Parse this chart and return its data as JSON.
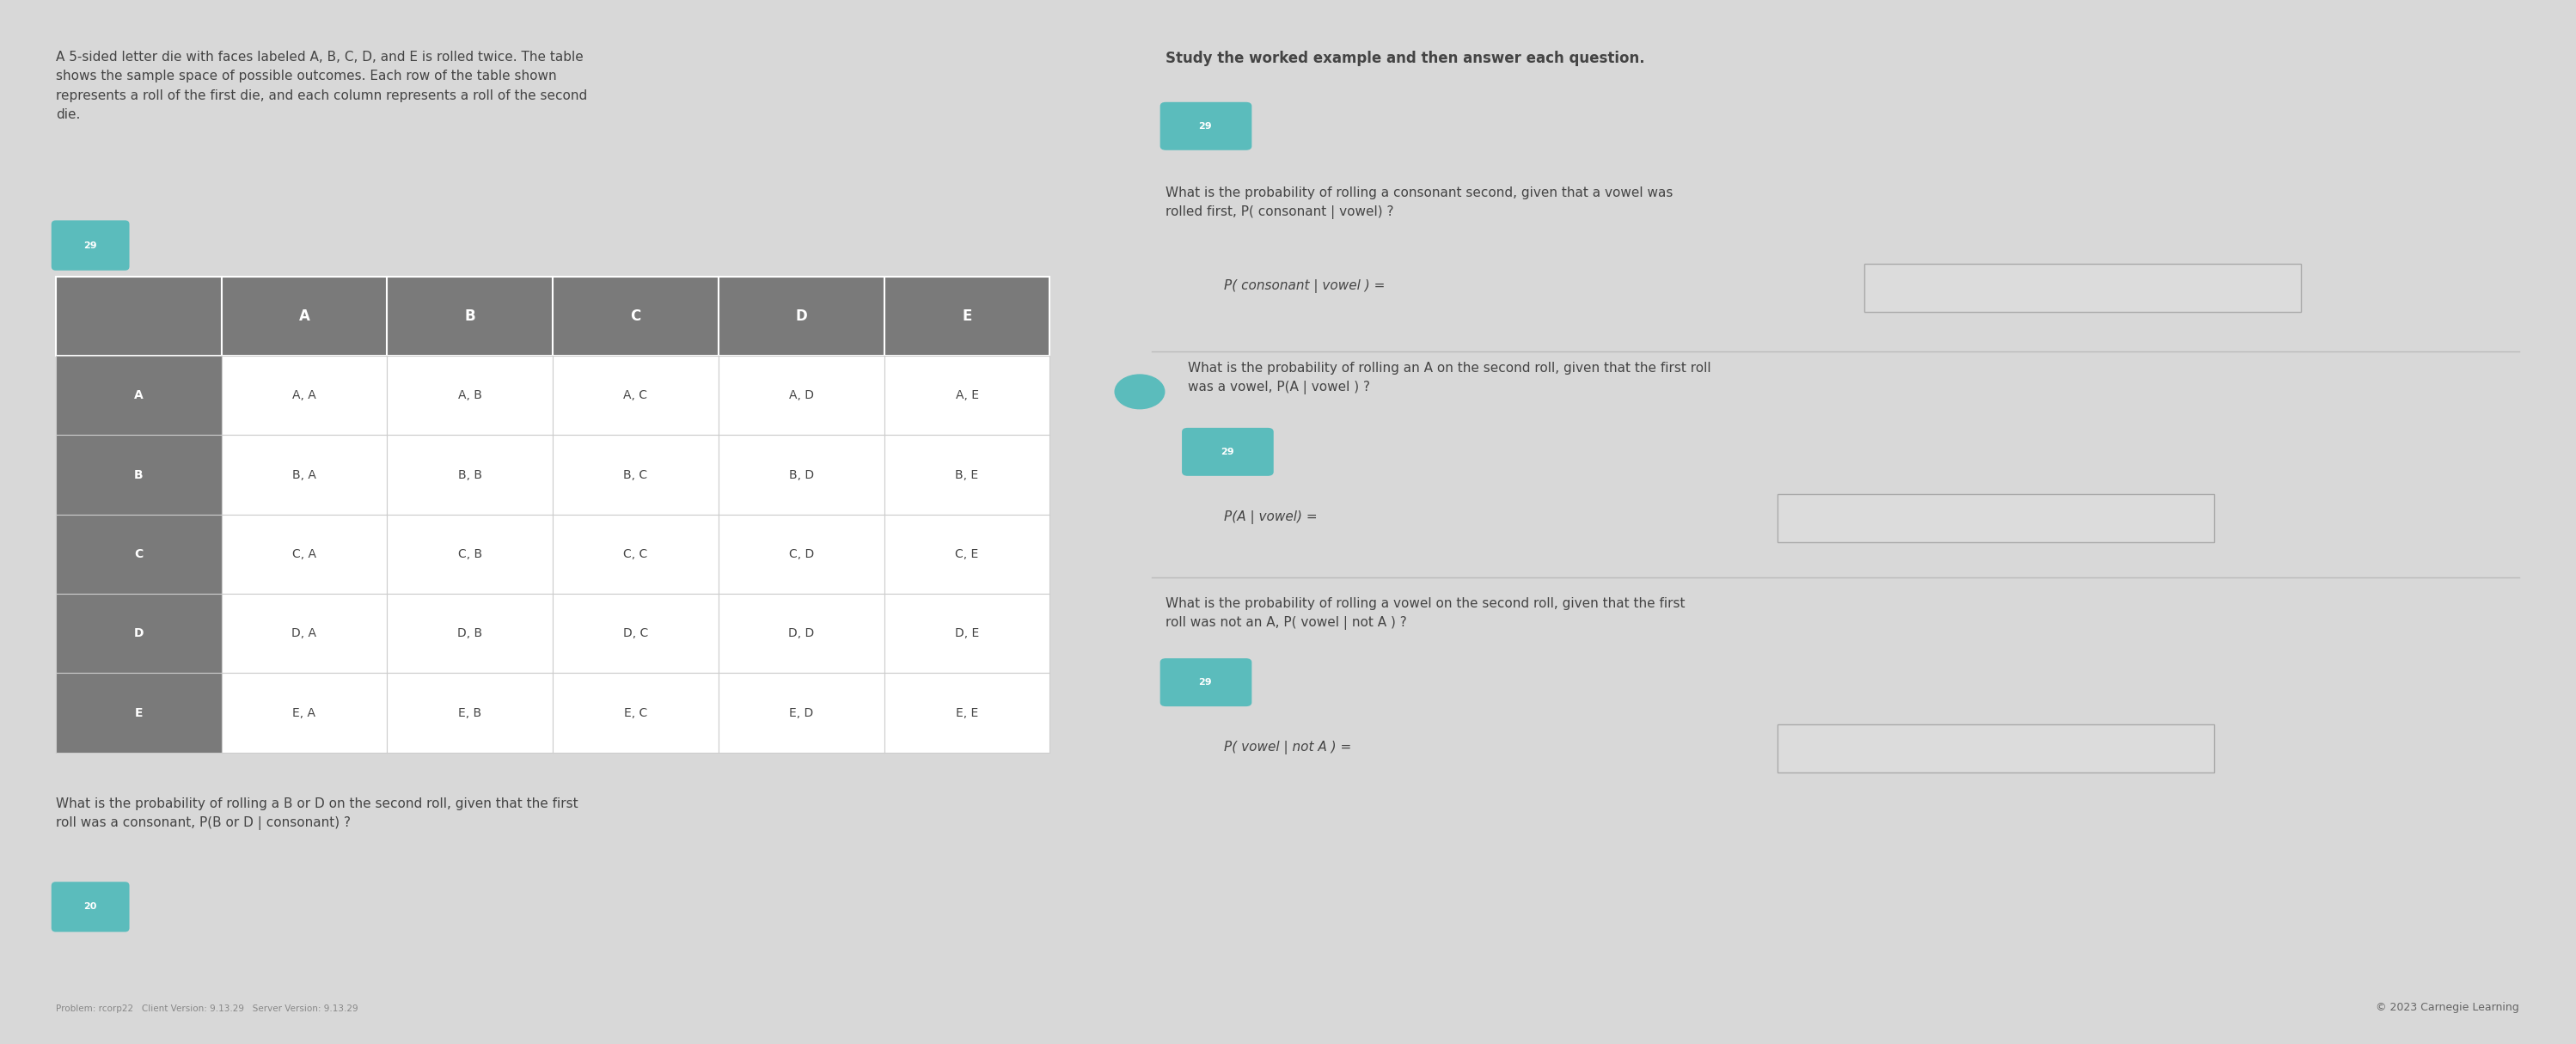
{
  "bg_color": "#d8d8d8",
  "panel_bg": "#f0f0f0",
  "table_header_bg": "#7a7a7a",
  "table_header_text": "#ffffff",
  "table_cell_bg": "#ffffff",
  "table_border": "#cccccc",
  "text_color": "#444444",
  "input_box_bg": "#dcdcdc",
  "teal_icon_bg": "#5bbcbc",
  "title_text": "A 5-sided letter die with faces labeled A, B, C, D, and E is rolled twice. The table\nshows the sample space of possible outcomes. Each row of the table shown\nrepresents a roll of the first die, and each column represents a roll of the second\ndie.",
  "right_title": "Study the worked example and then answer each question.",
  "col_headers": [
    "",
    "A",
    "B",
    "C",
    "D",
    "E"
  ],
  "row_headers": [
    "A",
    "B",
    "C",
    "D",
    "E"
  ],
  "table_data": [
    [
      "A, A",
      "A, B",
      "A, C",
      "A, D",
      "A, E"
    ],
    [
      "B, A",
      "B, B",
      "B, C",
      "B, D",
      "B, E"
    ],
    [
      "C, A",
      "C, B",
      "C, C",
      "C, D",
      "C, E"
    ],
    [
      "D, A",
      "D, B",
      "D, C",
      "D, D",
      "D, E"
    ],
    [
      "E, A",
      "E, B",
      "E, C",
      "E, D",
      "E, E"
    ]
  ],
  "q1_text": "What is the probability of rolling a consonant second, given that a vowel was\nrolled first, P( consonant | vowel) ?",
  "q1_formula": "P( consonant | vowel ) =",
  "q2_text": "What is the probability of rolling an A on the second roll, given that the first roll\nwas a vowel, P(A | vowel ) ?",
  "q2_formula": "P(A | vowel) =",
  "q3_text": "What is the probability of rolling a B or D on the second roll, given that the first\nroll was a consonant, P(B or D | consonant) ?",
  "q4_text": "What is the probability of rolling a vowel on the second roll, given that the first\nroll was not an A, P( vowel | not A ) ?",
  "q4_formula": "P( vowel | not A ) =",
  "footer_text": "Problem: rcorp22   Client Version: 9.13.29   Server Version: 9.13.29",
  "copyright_text": "© 2023 Carnegie Learning"
}
